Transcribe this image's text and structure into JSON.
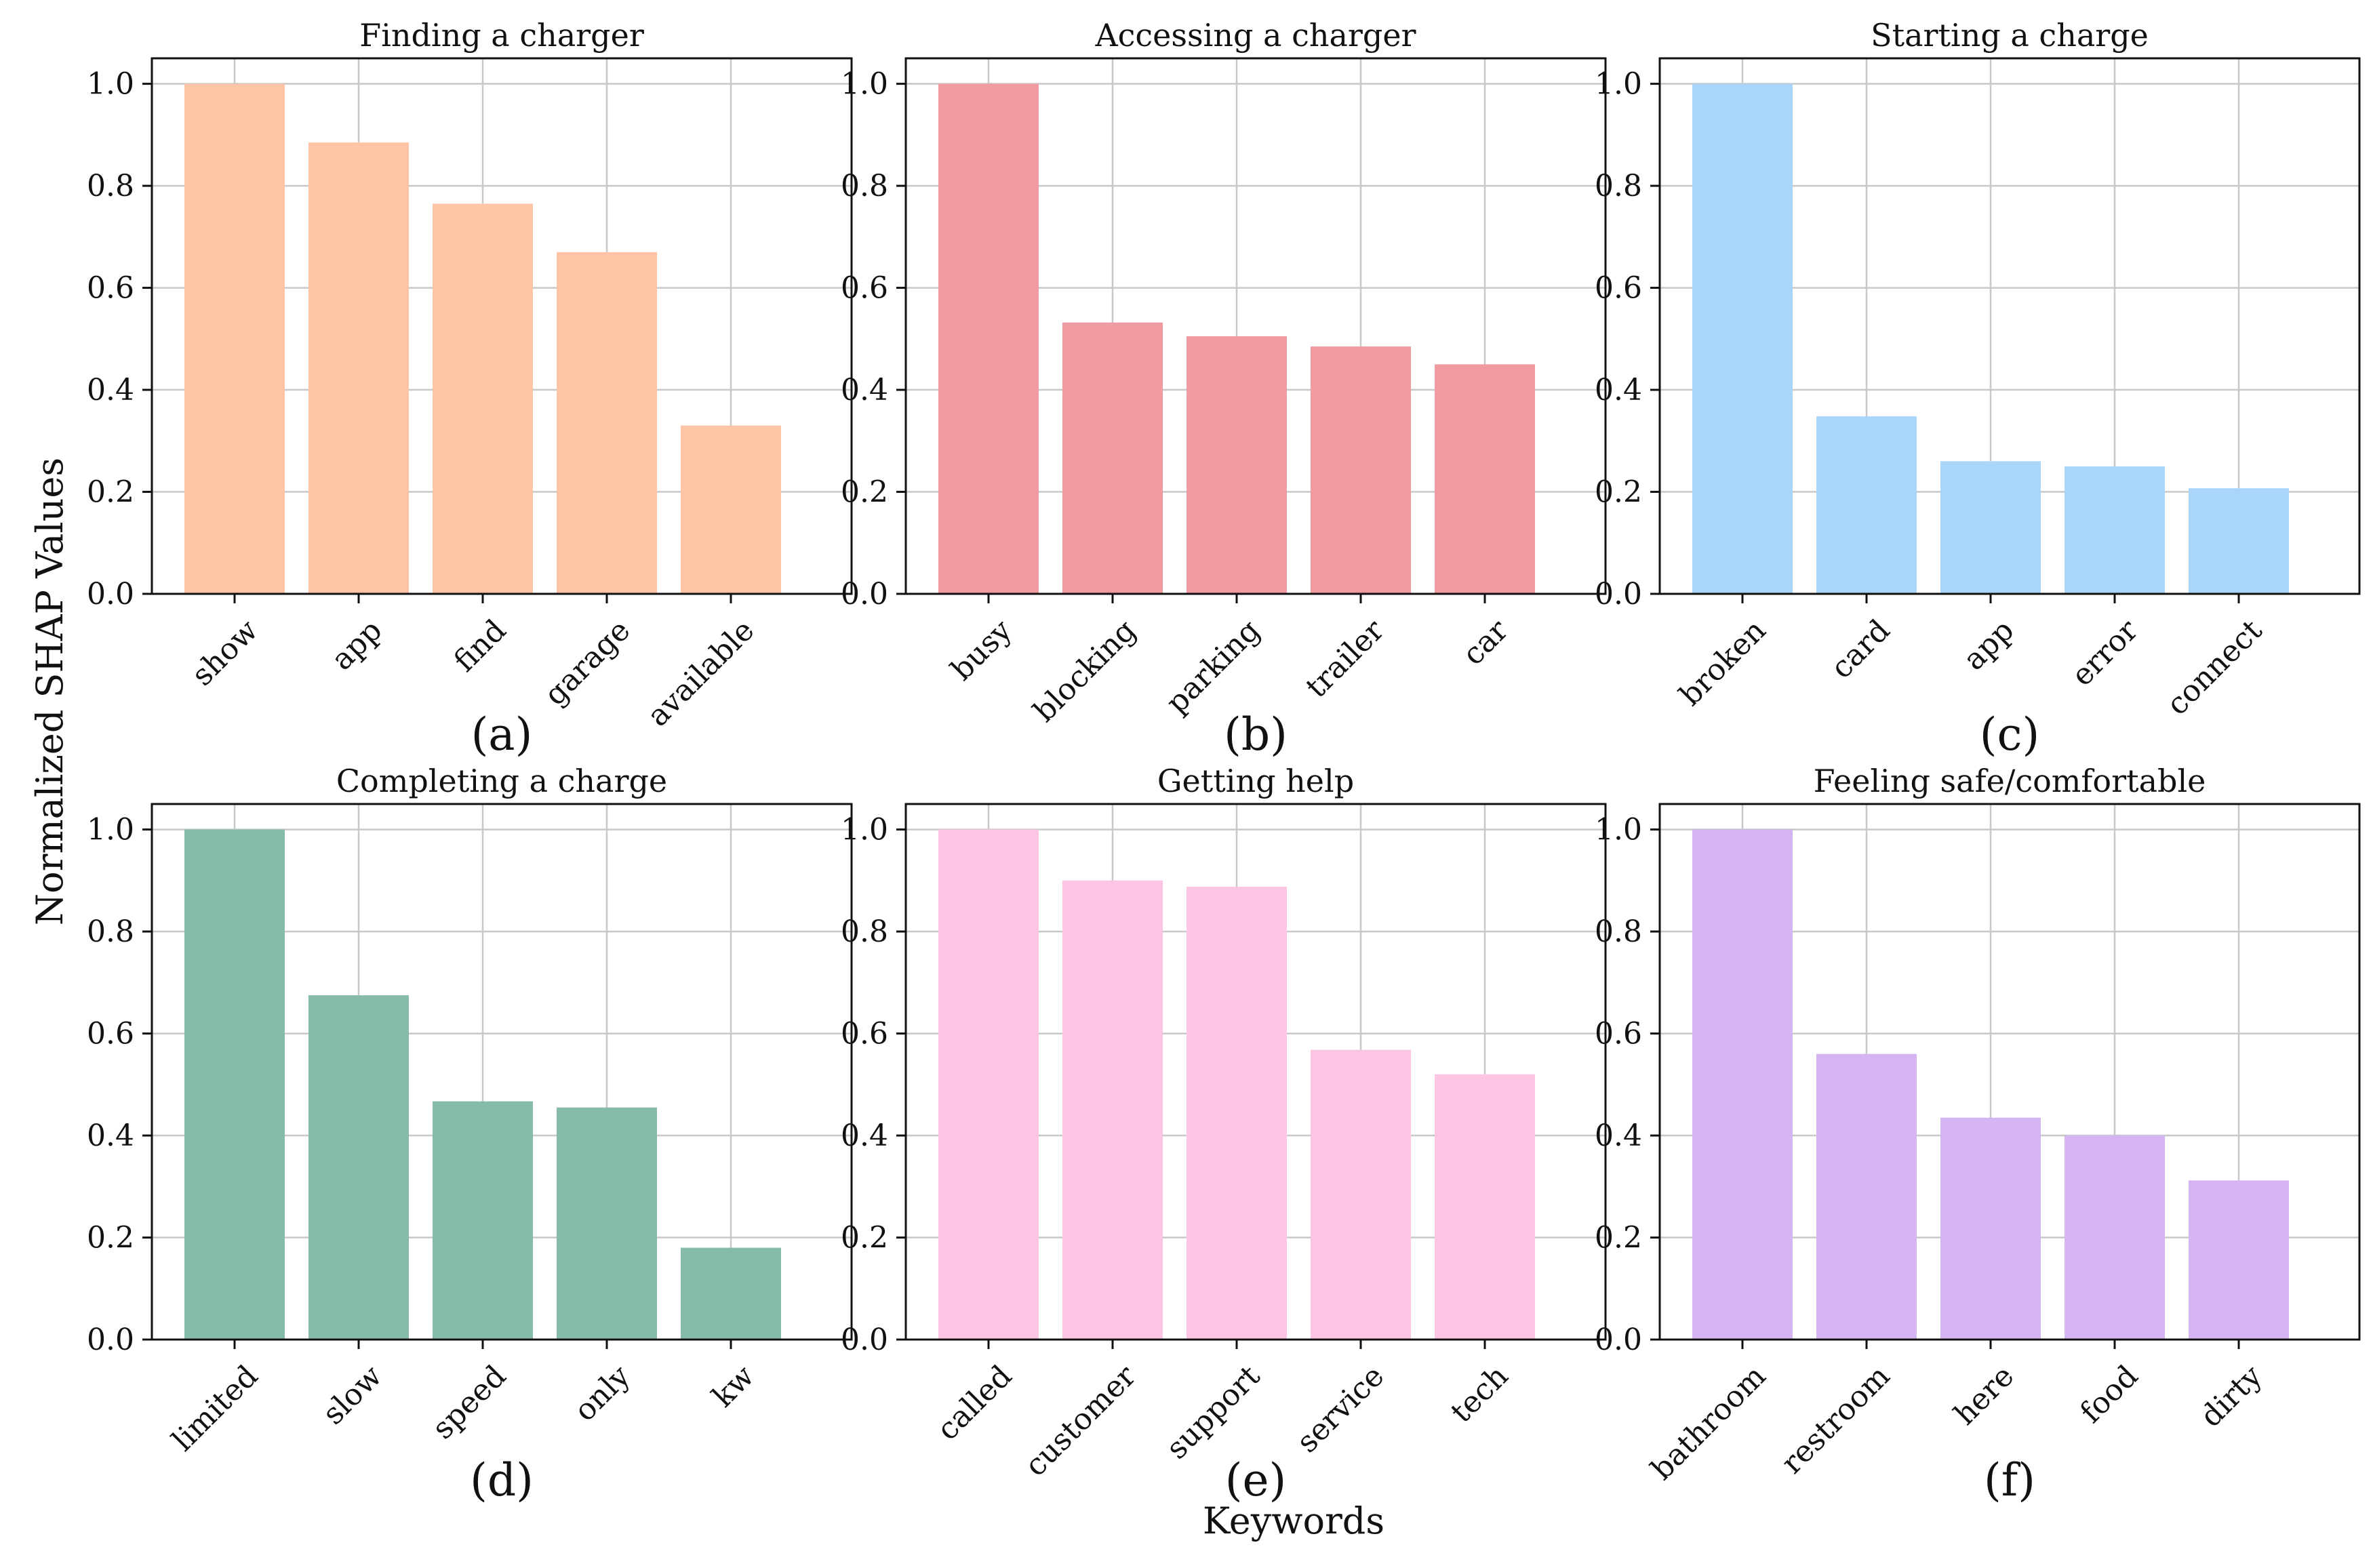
{
  "figure": {
    "ylabel": "Normalized SHAP Values",
    "xlabel": "Keywords"
  },
  "chart_data": [
    {
      "type": "bar",
      "title": "Finding a charger",
      "panel_label": "(a)",
      "categories": [
        "show",
        "app",
        "find",
        "garage",
        "available"
      ],
      "values": [
        1.0,
        0.885,
        0.765,
        0.67,
        0.33
      ],
      "color": "#FDC5A5",
      "ylim": [
        0,
        1.05
      ],
      "yticks": [
        "0.0",
        "0.2",
        "0.4",
        "0.6",
        "0.8",
        "1.0"
      ],
      "grid": true
    },
    {
      "type": "bar",
      "title": "Accessing a charger",
      "panel_label": "(b)",
      "categories": [
        "busy",
        "blocking",
        "parking",
        "trailer",
        "car"
      ],
      "values": [
        1.0,
        0.532,
        0.505,
        0.485,
        0.45
      ],
      "color": "#F09AA1",
      "ylim": [
        0,
        1.05
      ],
      "yticks": [
        "0.0",
        "0.2",
        "0.4",
        "0.6",
        "0.8",
        "1.0"
      ],
      "grid": true
    },
    {
      "type": "bar",
      "title": "Starting a charge",
      "panel_label": "(c)",
      "categories": [
        "broken",
        "card",
        "app",
        "error",
        "connect"
      ],
      "values": [
        1.0,
        0.348,
        0.26,
        0.25,
        0.207
      ],
      "color": "#AAD5FB",
      "ylim": [
        0,
        1.05
      ],
      "yticks": [
        "0.0",
        "0.2",
        "0.4",
        "0.6",
        "0.8",
        "1.0"
      ],
      "grid": true
    },
    {
      "type": "bar",
      "title": "Completing a charge",
      "panel_label": "(d)",
      "categories": [
        "limited",
        "slow",
        "speed",
        "only",
        "kw"
      ],
      "values": [
        1.0,
        0.675,
        0.467,
        0.455,
        0.18
      ],
      "color": "#86BBA7",
      "ylim": [
        0,
        1.05
      ],
      "yticks": [
        "0.0",
        "0.2",
        "0.4",
        "0.6",
        "0.8",
        "1.0"
      ],
      "grid": true
    },
    {
      "type": "bar",
      "title": "Getting help",
      "panel_label": "(e)",
      "categories": [
        "called",
        "customer",
        "support",
        "service",
        "tech"
      ],
      "values": [
        1.0,
        0.9,
        0.888,
        0.568,
        0.52
      ],
      "color": "#FDC5E4",
      "ylim": [
        0,
        1.05
      ],
      "yticks": [
        "0.0",
        "0.2",
        "0.4",
        "0.6",
        "0.8",
        "1.0"
      ],
      "grid": true
    },
    {
      "type": "bar",
      "title": "Feeling safe/comfortable",
      "panel_label": "(f)",
      "categories": [
        "bathroom",
        "restroom",
        "here",
        "food",
        "dirty"
      ],
      "values": [
        1.0,
        0.56,
        0.435,
        0.4,
        0.312
      ],
      "color": "#D4B5F1",
      "ylim": [
        0,
        1.05
      ],
      "yticks": [
        "0.0",
        "0.2",
        "0.4",
        "0.6",
        "0.8",
        "1.0"
      ],
      "grid": true
    }
  ]
}
